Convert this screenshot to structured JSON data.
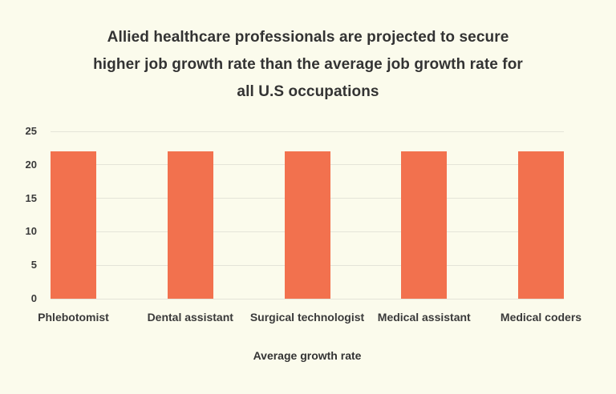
{
  "page": {
    "background": "#FBFBEC",
    "text_color": "#333333"
  },
  "title": {
    "lines": [
      "Allied healthcare professionals are projected to secure",
      "higher job growth rate than the average job growth rate for",
      "all U.S occupations"
    ]
  },
  "chart_data": {
    "type": "bar",
    "title": "Allied healthcare professionals are projected to secure higher job growth rate than the average job growth rate for all U.S occupations",
    "categories": [
      "Phlebotomist",
      "Dental assistant",
      "Surgical technologist",
      "Medical assistant",
      "Medical coders"
    ],
    "values": [
      22,
      22,
      22,
      22,
      22
    ],
    "xlabel": "Average growth rate",
    "ylabel": "",
    "ylim": [
      0,
      25
    ],
    "yticks": [
      0,
      5,
      10,
      15,
      20,
      25
    ],
    "grid": true,
    "legend": false,
    "bar_color": "#F2714E",
    "gridline_color": "#E4E4D8",
    "label_color": "#3A3A3A"
  }
}
